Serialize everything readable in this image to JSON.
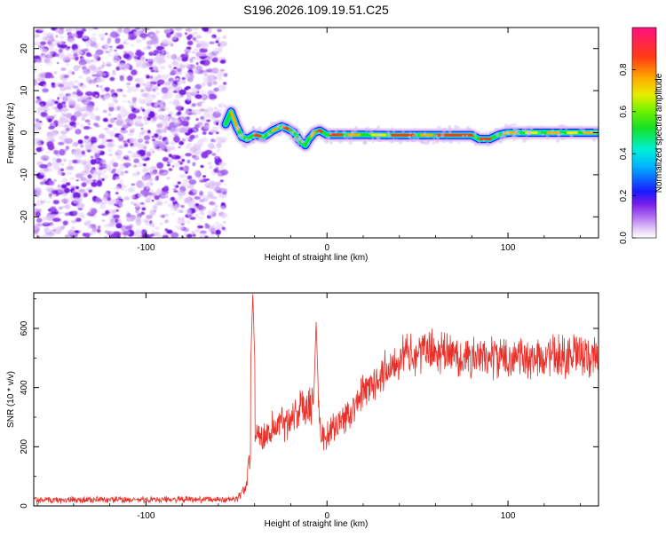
{
  "title": "S196.2026.109.19.51.C25",
  "chart_data": [
    {
      "type": "heatmap",
      "panel": "top",
      "xlabel": "Height of straight line (km)",
      "ylabel": "Frequency (Hz)",
      "xlim": [
        -162,
        150
      ],
      "ylim": [
        -25,
        25
      ],
      "xticks": [
        -100,
        0,
        100
      ],
      "yticks": [
        -20,
        -10,
        0,
        10,
        20
      ],
      "noise_region_x": [
        -162,
        -56
      ],
      "ridge": {
        "x": [
          -56,
          -53,
          -50,
          -47,
          -44,
          -40,
          -35,
          -30,
          -25,
          -22,
          -18,
          -15,
          -12,
          -10,
          -7,
          -4,
          0,
          10,
          20,
          40,
          60,
          80,
          84,
          90,
          95,
          100,
          120,
          150
        ],
        "frequency": [
          2,
          5,
          1.5,
          -1,
          -1.5,
          -0.5,
          -1,
          0.5,
          1.5,
          1,
          0,
          -2,
          -3,
          -1.5,
          0,
          0.5,
          -0.5,
          -0.5,
          -0.5,
          -0.6,
          -0.6,
          -0.6,
          -1.5,
          -1.5,
          -0.5,
          0,
          0,
          0
        ]
      },
      "colorbar": {
        "label": "Normalized spectral amplitude",
        "range": [
          0.0,
          1.0
        ],
        "ticks": [
          "0.0",
          "0.2",
          "0.4",
          "0.6",
          "0.8"
        ]
      }
    },
    {
      "type": "line",
      "panel": "bottom",
      "xlabel": "Height of straight line (km)",
      "ylabel": "SNR (10 * v/v)",
      "xlim": [
        -162,
        150
      ],
      "ylim": [
        0,
        720
      ],
      "xticks": [
        -100,
        0,
        100
      ],
      "yticks": [
        0,
        200,
        400,
        600
      ],
      "color": "#e8312a",
      "envelope": {
        "x": [
          -162,
          -50,
          -45,
          -42,
          -41,
          -40,
          -38,
          -35,
          -30,
          -25,
          -20,
          -15,
          -10,
          -7,
          -6,
          -5,
          -3,
          0,
          10,
          20,
          30,
          40,
          50,
          60,
          80,
          100,
          120,
          150
        ],
        "base": [
          20,
          22,
          60,
          200,
          240,
          230,
          250,
          240,
          260,
          280,
          300,
          330,
          350,
          340,
          400,
          380,
          230,
          240,
          300,
          380,
          450,
          500,
          520,
          520,
          500,
          500,
          505,
          500
        ],
        "amp": [
          12,
          12,
          25,
          60,
          80,
          60,
          60,
          60,
          70,
          70,
          70,
          70,
          90,
          80,
          70,
          60,
          60,
          50,
          60,
          70,
          80,
          80,
          80,
          80,
          80,
          80,
          80,
          80
        ]
      },
      "spikes": [
        {
          "x": -41,
          "y": 715
        },
        {
          "x": -6,
          "y": 625
        }
      ]
    }
  ]
}
